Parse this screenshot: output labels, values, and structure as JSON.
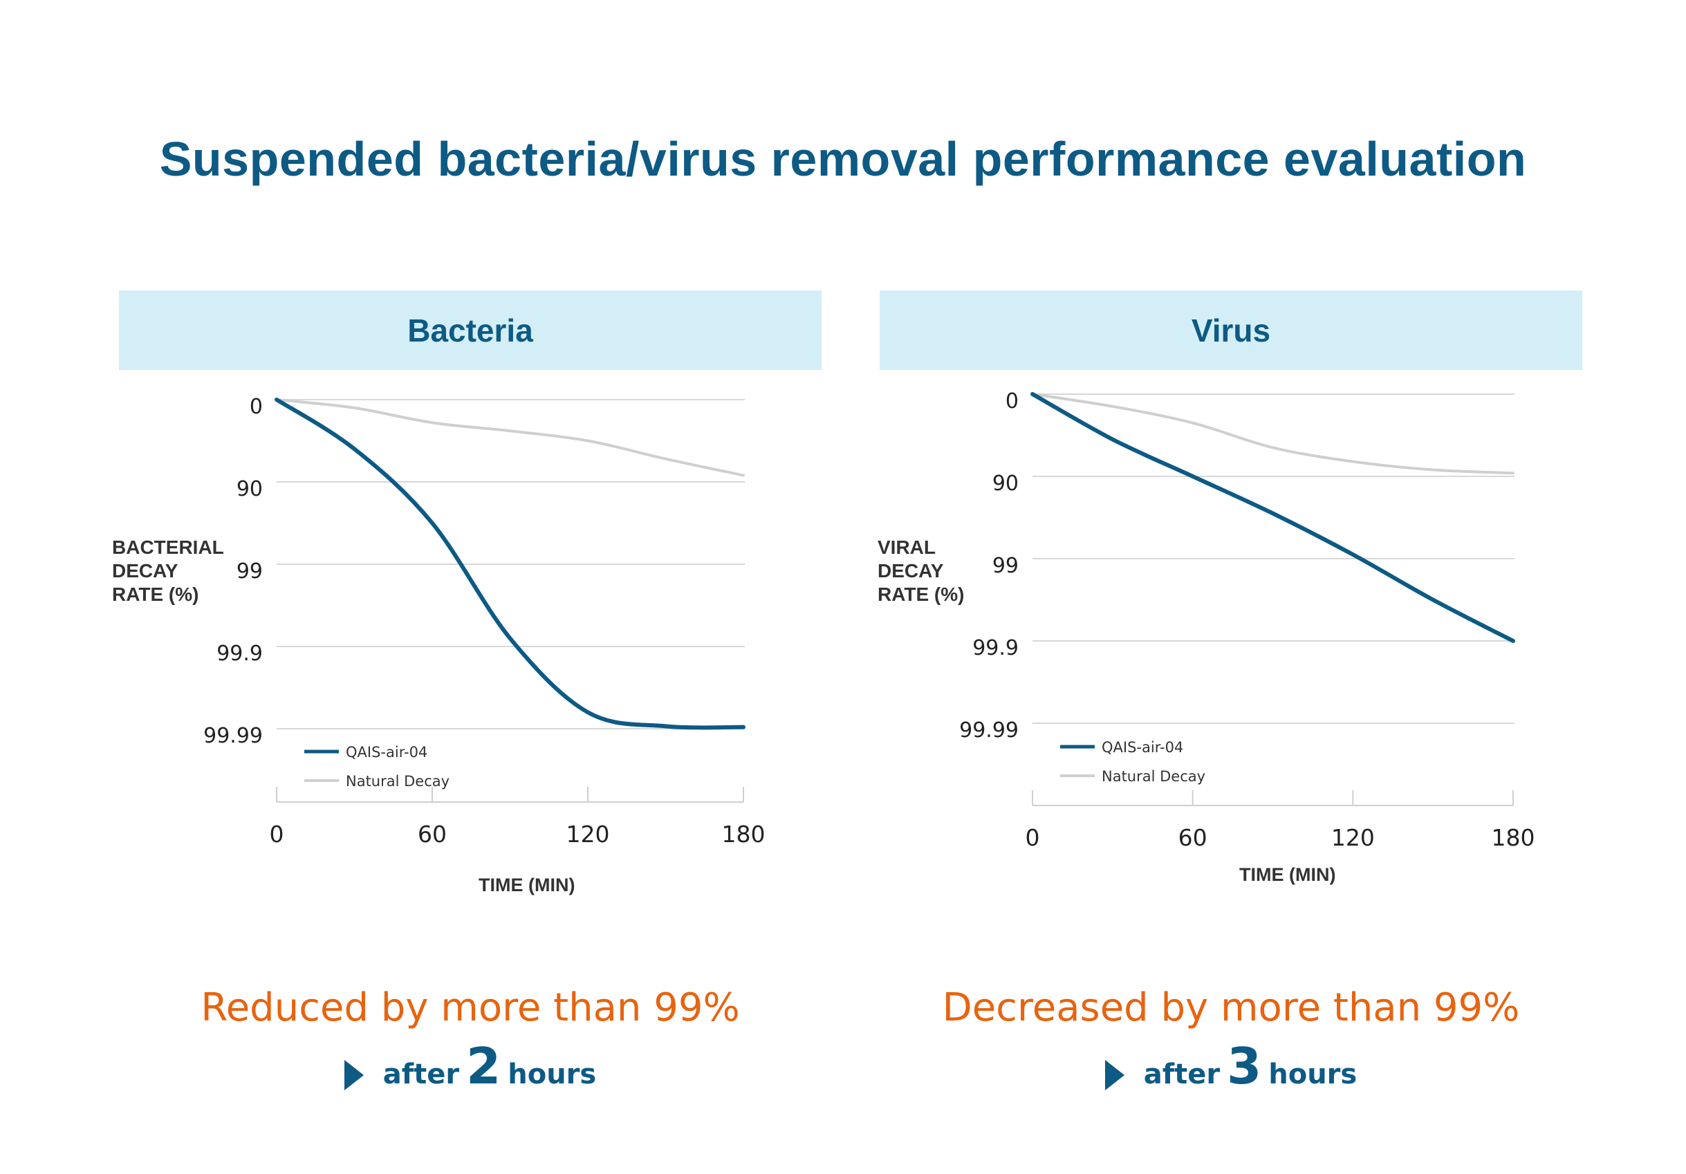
{
  "title": "Suspended bacteria/virus removal performance evaluation",
  "colors": {
    "primary": "#0d5a85",
    "header_bg": "#d4eef8",
    "accent": "#e8630f",
    "natural": "#cfcfcf",
    "grid": "#d8d8d8"
  },
  "panels": [
    {
      "header": "Bacteria",
      "ylabel": [
        "BACTERIAL",
        "DECAY",
        "RATE (%)"
      ],
      "xlabel": "TIME (MIN)",
      "result": "Reduced by more than 99%",
      "after_prefix": "after",
      "after_number": "2",
      "after_suffix": "hours"
    },
    {
      "header": "Virus",
      "ylabel": [
        "VIRAL",
        "DECAY",
        "RATE (%)"
      ],
      "xlabel": "TIME (MIN)",
      "result": "Decreased by more than 99%",
      "after_prefix": "after",
      "after_number": "3",
      "after_suffix": "hours"
    }
  ],
  "chart_data": [
    {
      "type": "line",
      "title": "Bacteria",
      "xlabel": "TIME (MIN)",
      "ylabel": "BACTERIAL DECAY RATE (%)",
      "x_ticks": [
        "0",
        "60",
        "120",
        "180"
      ],
      "y_ticks": [
        "0",
        "90",
        "99",
        "99.9",
        "99.99"
      ],
      "xlim": [
        0,
        180
      ],
      "y_scale": "log-reduction (0 to 4 log)",
      "ylim_log": [
        0,
        4
      ],
      "x": [
        0,
        30,
        60,
        90,
        120,
        150,
        180
      ],
      "series": [
        {
          "name": "QAIS-air-04",
          "color": "#0d5a85",
          "log_values": [
            0,
            0.6,
            1.5,
            2.9,
            3.8,
            3.97,
            3.98
          ]
        },
        {
          "name": "Natural Decay",
          "color": "#cfcfcf",
          "log_values": [
            0,
            0.1,
            0.28,
            0.38,
            0.5,
            0.72,
            0.92
          ]
        }
      ],
      "legend": [
        "QAIS-air-04",
        "Natural Decay"
      ]
    },
    {
      "type": "line",
      "title": "Virus",
      "xlabel": "TIME (MIN)",
      "ylabel": "VIRAL DECAY RATE (%)",
      "x_ticks": [
        "0",
        "60",
        "120",
        "180"
      ],
      "y_ticks": [
        "0",
        "90",
        "99",
        "99.9",
        "99.99"
      ],
      "xlim": [
        0,
        180
      ],
      "y_scale": "log-reduction (0 to 4 log)",
      "ylim_log": [
        0,
        4
      ],
      "x": [
        0,
        30,
        60,
        90,
        120,
        150,
        180
      ],
      "series": [
        {
          "name": "QAIS-air-04",
          "color": "#0d5a85",
          "log_values": [
            0,
            0.55,
            1.0,
            1.45,
            1.95,
            2.5,
            3.0
          ]
        },
        {
          "name": "Natural Decay",
          "color": "#cfcfcf",
          "log_values": [
            0,
            0.15,
            0.35,
            0.65,
            0.82,
            0.92,
            0.96
          ]
        }
      ],
      "legend": [
        "QAIS-air-04",
        "Natural Decay"
      ]
    }
  ]
}
